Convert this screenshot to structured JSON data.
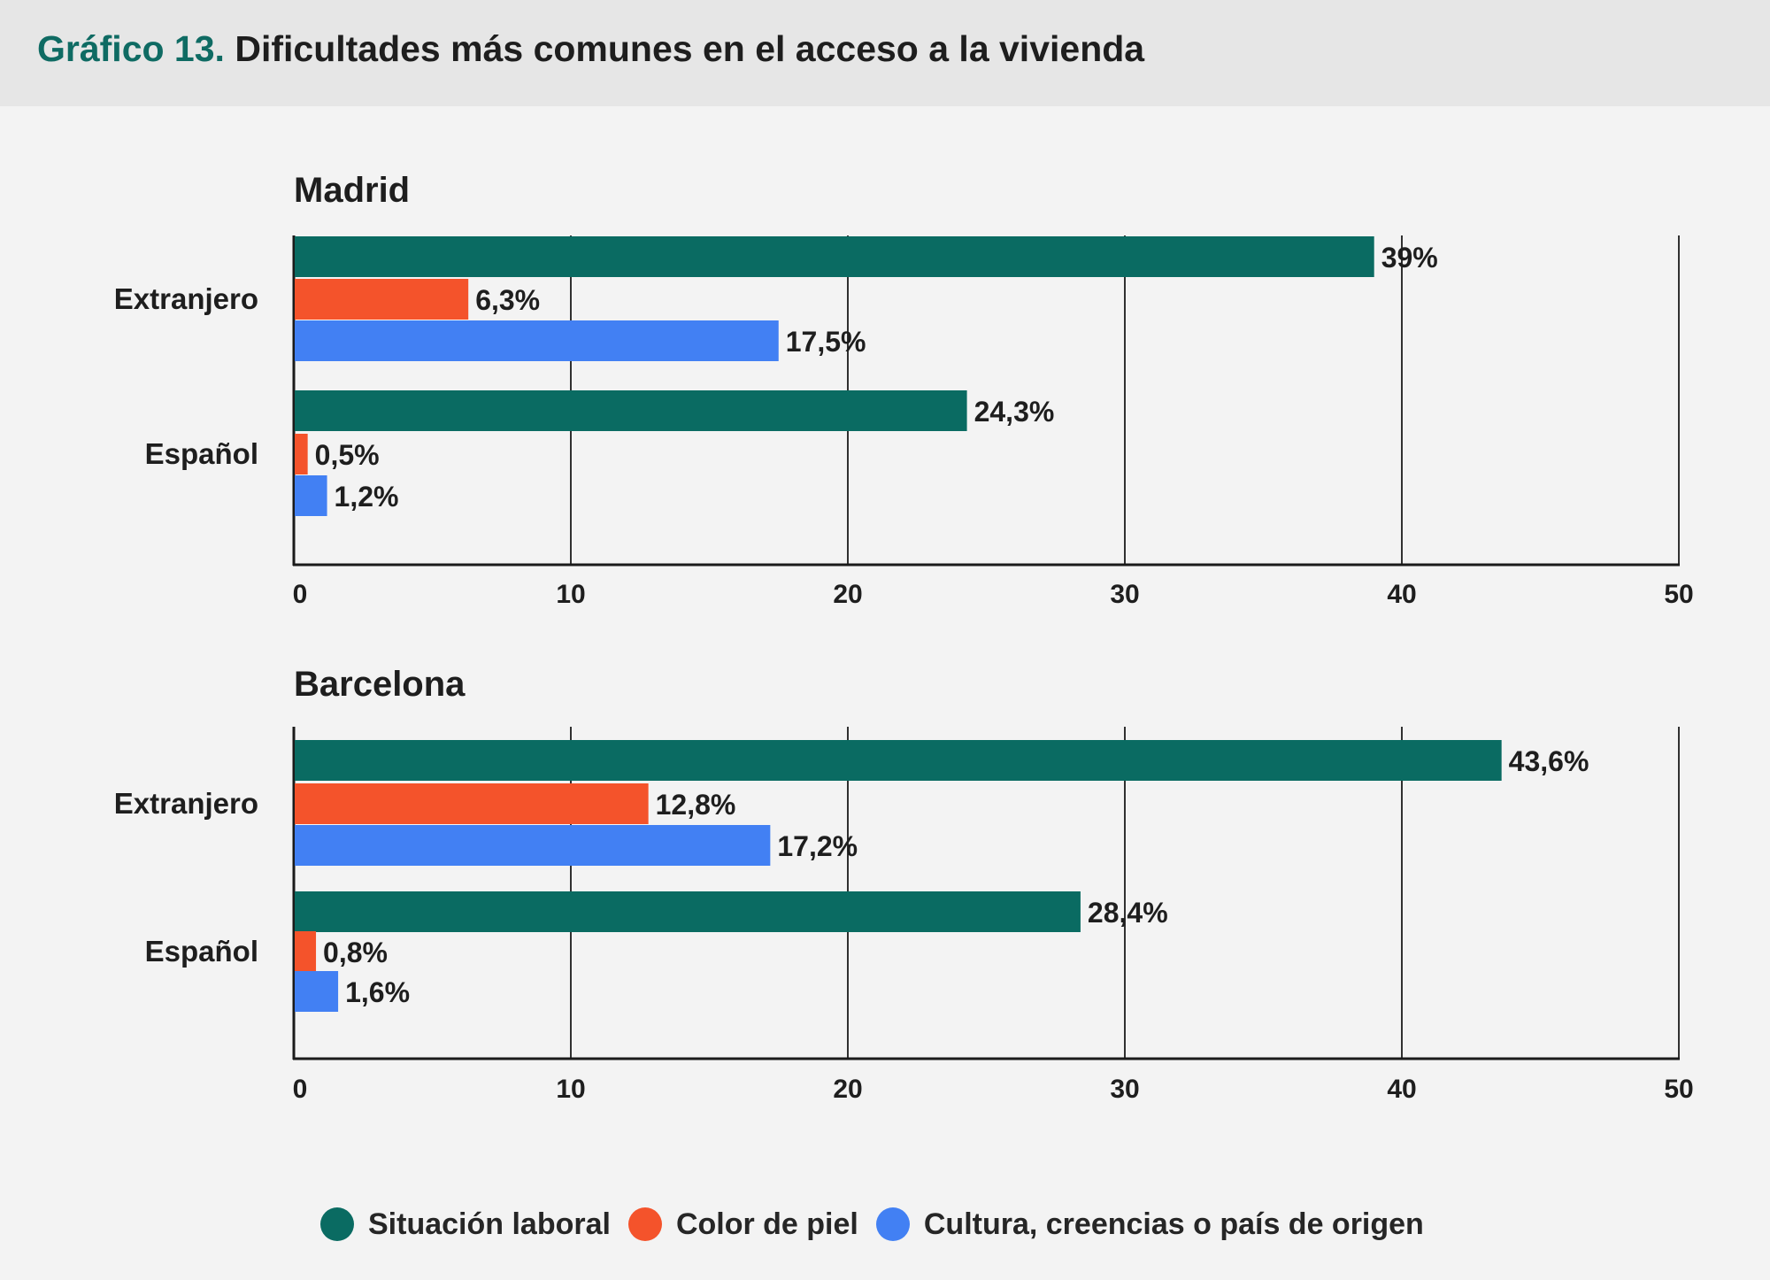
{
  "title": {
    "prefix": "Gráfico 13.",
    "text": "Dificultades más comunes en el acceso a la vivienda"
  },
  "colors": {
    "accent": "#0f6b63",
    "situacion_laboral": "#0a6b62",
    "color_de_piel": "#f4532b",
    "cultura": "#4280f3"
  },
  "legend": [
    {
      "label": "Situación laboral",
      "color": "#0a6b62"
    },
    {
      "label": "Color de piel",
      "color": "#f4532b"
    },
    {
      "label": "Cultura, creencias o país de origen",
      "color": "#4280f3"
    }
  ],
  "chart_data": [
    {
      "type": "bar",
      "orientation": "horizontal",
      "title": "Madrid",
      "categories": [
        "Extranjero",
        "Español"
      ],
      "series": [
        {
          "name": "Situación laboral",
          "values": [
            39,
            24.3
          ],
          "labels": [
            "39%",
            "24,3%"
          ]
        },
        {
          "name": "Color de piel",
          "values": [
            6.3,
            0.5
          ],
          "labels": [
            "6,3%",
            "0,5%"
          ]
        },
        {
          "name": "Cultura, creencias o país de origen",
          "values": [
            17.5,
            1.2
          ],
          "labels": [
            "17,5%",
            "1,2%"
          ]
        }
      ],
      "xlim": [
        0,
        50
      ],
      "xticks": [
        0,
        10,
        20,
        30,
        40,
        50
      ],
      "grid": true
    },
    {
      "type": "bar",
      "orientation": "horizontal",
      "title": "Barcelona",
      "categories": [
        "Extranjero",
        "Español"
      ],
      "series": [
        {
          "name": "Situación laboral",
          "values": [
            43.6,
            28.4
          ],
          "labels": [
            "43,6%",
            "28,4%"
          ]
        },
        {
          "name": "Color de piel",
          "values": [
            12.8,
            0.8
          ],
          "labels": [
            "12,8%",
            "0,8%"
          ]
        },
        {
          "name": "Cultura, creencias o país de origen",
          "values": [
            17.2,
            1.6
          ],
          "labels": [
            "17,2%",
            "1,6%"
          ]
        }
      ],
      "xlim": [
        0,
        50
      ],
      "xticks": [
        0,
        10,
        20,
        30,
        40,
        50
      ],
      "grid": true
    }
  ]
}
